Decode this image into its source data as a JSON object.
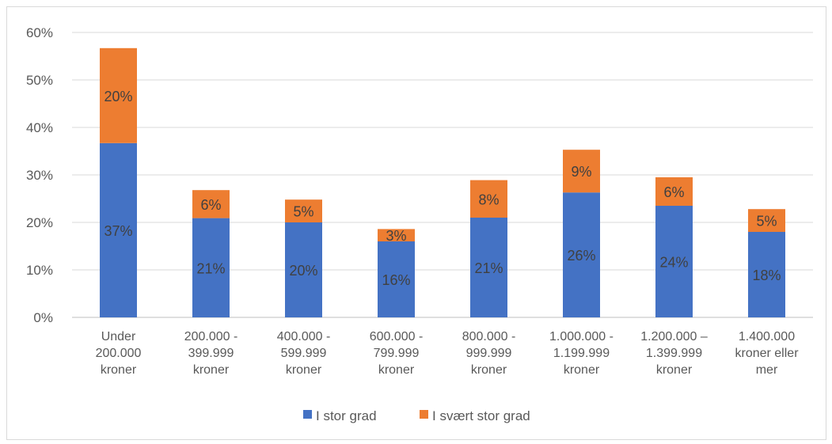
{
  "chart_data": {
    "type": "bar",
    "stacked": true,
    "categories": [
      [
        "Under",
        "200.000",
        "kroner"
      ],
      [
        "200.000 -",
        "399.999",
        "kroner"
      ],
      [
        "400.000 -",
        "599.999",
        "kroner"
      ],
      [
        "600.000 -",
        "799.999",
        "kroner"
      ],
      [
        "800.000 -",
        "999.999",
        "kroner"
      ],
      [
        "1.000.000 -",
        "1.199.999",
        "kroner"
      ],
      [
        "1.200.000 –",
        "1.399.999",
        "kroner"
      ],
      [
        "1.400.000",
        "kroner eller",
        "mer"
      ]
    ],
    "series": [
      {
        "name": "I stor grad",
        "color": "#4472C4",
        "values": [
          36.7,
          20.9,
          20.0,
          16.0,
          21.0,
          26.3,
          23.5,
          18.0
        ],
        "labels": [
          "37%",
          "21%",
          "20%",
          "16%",
          "21%",
          "26%",
          "24%",
          "18%"
        ]
      },
      {
        "name": "I svært stor grad",
        "color": "#ED7D31",
        "values": [
          20.0,
          5.9,
          4.8,
          2.6,
          7.9,
          9.0,
          6.0,
          4.8
        ],
        "labels": [
          "20%",
          "6%",
          "5%",
          "3%",
          "8%",
          "9%",
          "6%",
          "5%"
        ]
      }
    ],
    "y_ticks": [
      "0%",
      "10%",
      "20%",
      "30%",
      "40%",
      "50%",
      "60%"
    ],
    "ylim": [
      0,
      60
    ],
    "grid": true,
    "legend_position": "bottom",
    "title": "",
    "xlabel": "",
    "ylabel": ""
  }
}
